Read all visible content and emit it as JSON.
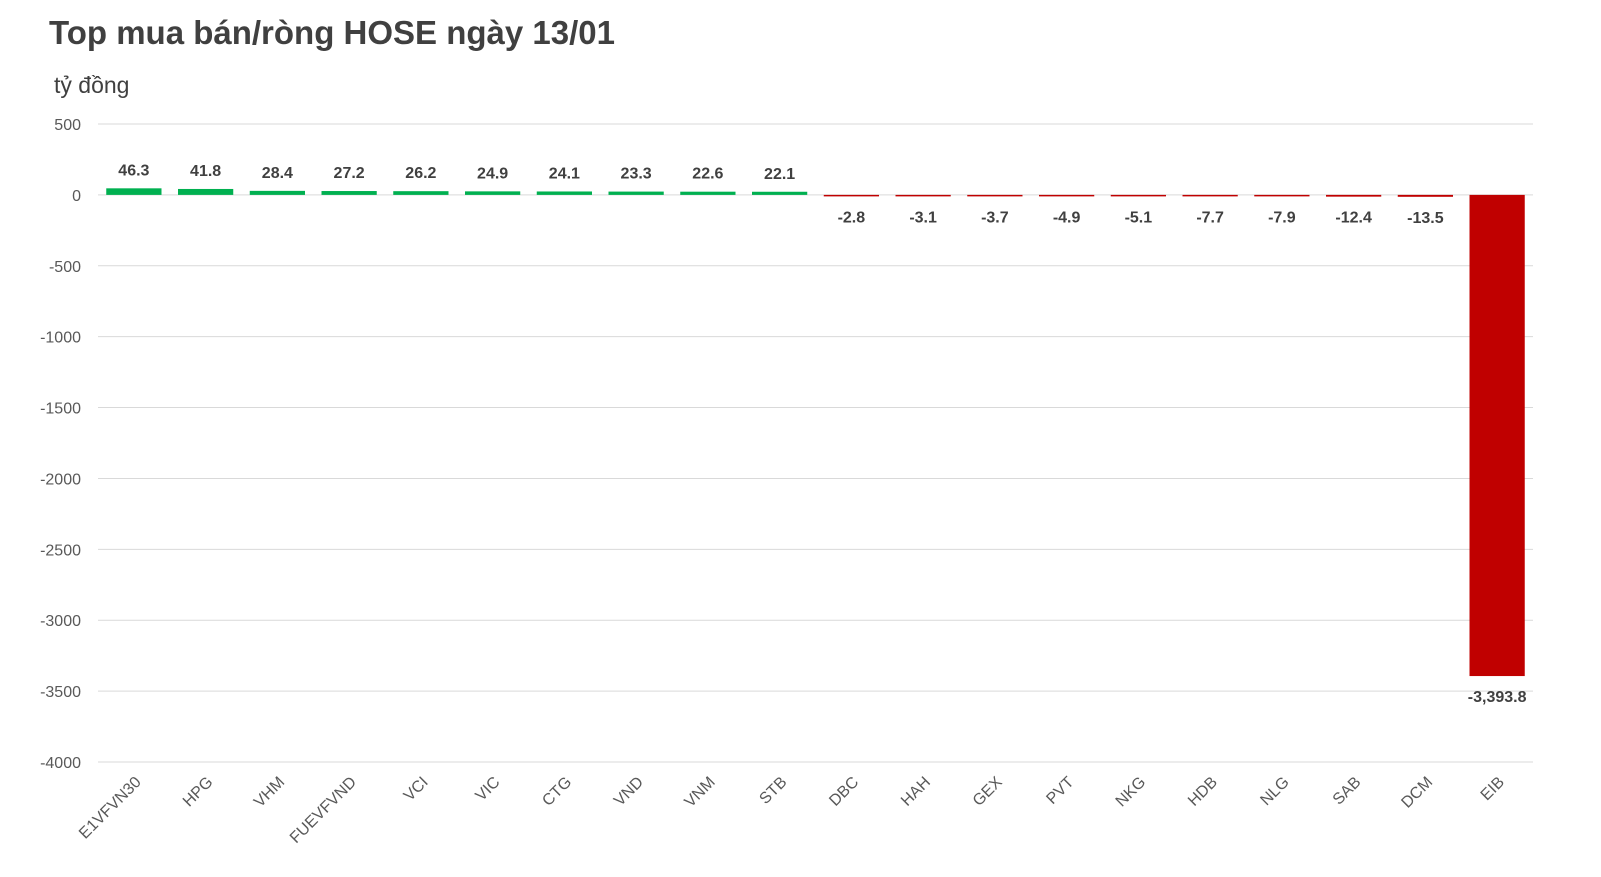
{
  "chart_data": {
    "type": "bar",
    "title": "Top mua bán/ròng HOSE ngày 13/01",
    "ylabel": "tỷ đồng",
    "xlabel": "",
    "categories": [
      "E1VFVN30",
      "HPG",
      "VHM",
      "FUEVFVND",
      "VCI",
      "VIC",
      "CTG",
      "VND",
      "VNM",
      "STB",
      "DBC",
      "HAH",
      "GEX",
      "PVT",
      "NKG",
      "HDB",
      "NLG",
      "SAB",
      "DCM",
      "EIB"
    ],
    "values": [
      46.3,
      41.8,
      28.4,
      27.2,
      26.2,
      24.9,
      24.1,
      23.3,
      22.6,
      22.1,
      -2.8,
      -3.1,
      -3.7,
      -4.9,
      -5.1,
      -7.7,
      -7.9,
      -12.4,
      -13.5,
      -3393.8
    ],
    "data_labels": [
      "46.3",
      "41.8",
      "28.4",
      "27.2",
      "26.2",
      "24.9",
      "24.1",
      "23.3",
      "22.6",
      "22.1",
      "-2.8",
      "-3.1",
      "-3.7",
      "-4.9",
      "-5.1",
      "-7.7",
      "-7.9",
      "-12.4",
      "-13.5",
      "-3,393.8"
    ],
    "yticks": [
      500,
      0,
      -500,
      -1000,
      -1500,
      -2000,
      -2500,
      -3000,
      -3500,
      -4000
    ],
    "ytick_labels": [
      "500",
      "0",
      "-500",
      "-1000",
      "-1500",
      "-2000",
      "-2500",
      "-3000",
      "-3500",
      "-4000"
    ],
    "ylim": [
      -4000,
      500
    ],
    "grid": true,
    "legend": "none",
    "colors": {
      "positive": "#00B050",
      "negative": "#C00000",
      "grid": "#D9D9D9",
      "text": "#595959"
    }
  }
}
